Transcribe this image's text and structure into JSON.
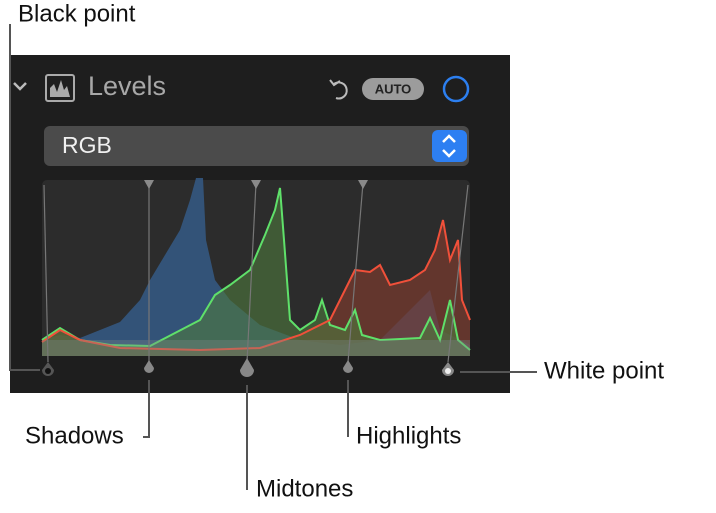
{
  "panel": {
    "title": "Levels",
    "auto_button": "AUTO",
    "channel": "RGB"
  },
  "callouts": {
    "black_point": "Black point",
    "shadows": "Shadows",
    "midtones": "Midtones",
    "highlights": "Highlights",
    "white_point": "White point"
  }
}
